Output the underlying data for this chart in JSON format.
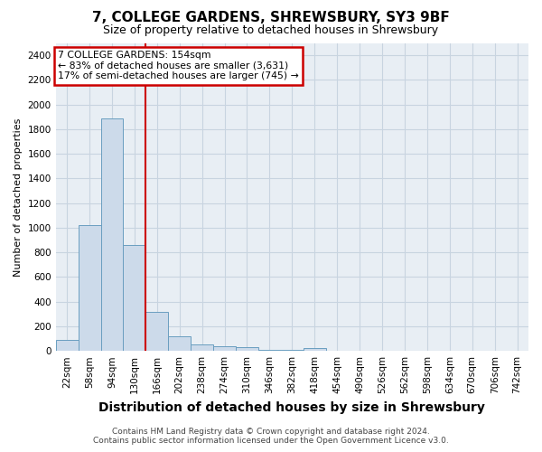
{
  "title1": "7, COLLEGE GARDENS, SHREWSBURY, SY3 9BF",
  "title2": "Size of property relative to detached houses in Shrewsbury",
  "xlabel": "Distribution of detached houses by size in Shrewsbury",
  "ylabel": "Number of detached properties",
  "footer1": "Contains HM Land Registry data © Crown copyright and database right 2024.",
  "footer2": "Contains public sector information licensed under the Open Government Licence v3.0.",
  "bin_labels": [
    "22sqm",
    "58sqm",
    "94sqm",
    "130sqm",
    "166sqm",
    "202sqm",
    "238sqm",
    "274sqm",
    "310sqm",
    "346sqm",
    "382sqm",
    "418sqm",
    "454sqm",
    "490sqm",
    "526sqm",
    "562sqm",
    "598sqm",
    "634sqm",
    "670sqm",
    "706sqm",
    "742sqm"
  ],
  "bar_values": [
    90,
    1025,
    1890,
    860,
    320,
    120,
    55,
    35,
    30,
    10,
    5,
    20,
    0,
    0,
    0,
    0,
    0,
    0,
    0,
    0,
    0
  ],
  "bar_color": "#ccdaea",
  "bar_edge_color": "#6a9ec0",
  "ylim": [
    0,
    2500
  ],
  "yticks": [
    0,
    200,
    400,
    600,
    800,
    1000,
    1200,
    1400,
    1600,
    1800,
    2000,
    2200,
    2400
  ],
  "property_size_label": "154sqm",
  "vline_bin_index": 3.67,
  "vline_color": "#cc0000",
  "annotation_text_line1": "7 COLLEGE GARDENS: 154sqm",
  "annotation_text_line2": "← 83% of detached houses are smaller (3,631)",
  "annotation_text_line3": "17% of semi-detached houses are larger (745) →",
  "annotation_box_color": "#ffffff",
  "annotation_box_edge": "#cc0000",
  "grid_color": "#c8d4e0",
  "background_color": "#e8eef4",
  "title_fontsize": 11,
  "subtitle_fontsize": 9,
  "ylabel_fontsize": 8,
  "xlabel_fontsize": 10,
  "tick_fontsize": 7.5
}
